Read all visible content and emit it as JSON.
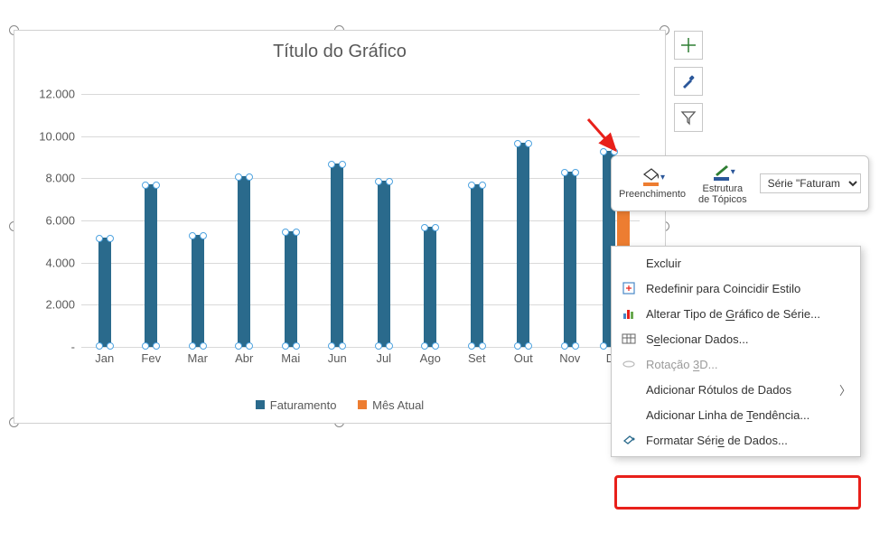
{
  "chart": {
    "title": "Título do Gráfico",
    "type": "bar",
    "y": {
      "max": 12000,
      "step": 2000,
      "labels": [
        "-",
        "2.000",
        "4.000",
        "6.000",
        "8.000",
        "10.000",
        "12.000"
      ]
    },
    "categories": [
      "Jan",
      "Fev",
      "Mar",
      "Abr",
      "Mai",
      "Jun",
      "Jul",
      "Ago",
      "Set",
      "Out",
      "Nov",
      "Dez"
    ],
    "series_fat": {
      "name": "Faturamento",
      "color": "#2a6a8c",
      "values": [
        5200,
        7700,
        5300,
        8100,
        5500,
        8700,
        7900,
        5700,
        7700,
        9700,
        8300,
        9300
      ]
    },
    "series_mes": {
      "name": "Mês Atual",
      "color": "#ed7d31",
      "values": [
        null,
        null,
        null,
        null,
        null,
        null,
        null,
        null,
        null,
        null,
        null,
        9100
      ]
    },
    "grid_color": "#d9d9d9",
    "bg": "#ffffff",
    "label_fontsize": 13,
    "title_fontsize": 20
  },
  "side_buttons": {
    "plus_color": "#2e7d32",
    "brush_color": "#2b579a",
    "funnel_color": "#595959"
  },
  "mini_toolbar": {
    "fill_label": "Preenchimento",
    "outline_label": "Estrutura de Tópicos",
    "series_select": "Série \"Faturam"
  },
  "context_menu": {
    "items": [
      {
        "key": "excluir",
        "label": "Excluir"
      },
      {
        "key": "redefinir",
        "label": "Redefinir para Coincidir Estilo"
      },
      {
        "key": "alterar",
        "label_prefix": "Alterar Tipo de ",
        "label_u": "G",
        "label_suffix": "ráfico de Série..."
      },
      {
        "key": "selecionar",
        "label_prefix": "S",
        "label_u": "e",
        "label_suffix": "lecionar Dados..."
      },
      {
        "key": "rot3d",
        "label_prefix": "Rotação ",
        "label_u": "3",
        "label_suffix": "D...",
        "disabled": true
      },
      {
        "key": "rotulos",
        "label": "Adicionar Rótulos de Dados",
        "submenu": true
      },
      {
        "key": "tendencia",
        "label_prefix": "Adicionar Linha de ",
        "label_u": "T",
        "label_suffix": "endência..."
      },
      {
        "key": "formatar",
        "label_prefix": "Formatar Séri",
        "label_u": "e",
        "label_suffix": " de Dados..."
      }
    ]
  }
}
